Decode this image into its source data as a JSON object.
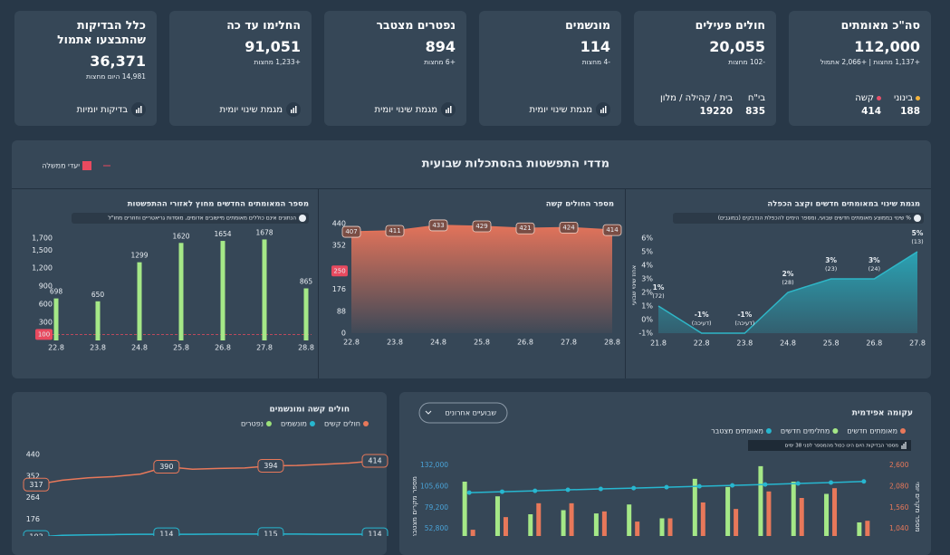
{
  "cards": [
    {
      "title": "סה\"כ מאומתים",
      "value": "112,000",
      "sub": "+1,137 מחצות | +2,066 אתמול",
      "items": [
        {
          "label": "בינוני",
          "value": "188",
          "color": "#f3b33d"
        },
        {
          "label": "קשה",
          "value": "414",
          "color": "#e8506a"
        }
      ]
    },
    {
      "title": "חולים פעילים",
      "value": "20,055",
      "sub": "-102 מחצות",
      "items": [
        {
          "label": "בי\"ח",
          "value": "835"
        },
        {
          "label": "בית / קהילה / מלון",
          "value": "19220"
        }
      ]
    },
    {
      "title": "מונשמים",
      "value": "114",
      "sub": "-4 מחצות",
      "link": "מגמת שינוי יומית"
    },
    {
      "title": "נפטרים מצטבר",
      "value": "894",
      "sub": "+6 מחצות",
      "link": "מגמת שינוי יומית"
    },
    {
      "title": "החלימו עד כה",
      "value": "91,051",
      "sub": "+1,233 מחצות",
      "link": "מגמת שינוי יומית"
    },
    {
      "title": "כלל הבדיקות שהתבצעו אתמול",
      "value": "36,371",
      "sub": "14,981 היום מחצות",
      "link": "בדיקות יומיות"
    }
  ],
  "spread": {
    "title": "מדדי התפשטות בהסתכלות שבועית",
    "legend": "יעדי ממשלה"
  },
  "chart_data": [
    {
      "type": "area",
      "title": "מגמת שינוי במאומתים חדשים וקצב הכפלה",
      "info": "% שינוי בממוצע מאומתים חדשים שבועי, ומספר הימים להכפלת הנדבקים (במוגבים)",
      "y_label": "אחוז שינוי שבועי",
      "categories": [
        "21.8",
        "22.8",
        "23.8",
        "24.8",
        "25.8",
        "26.8",
        "27.8"
      ],
      "values": [
        1,
        -1,
        -1,
        2,
        3,
        3,
        5
      ],
      "value_labels": [
        "1%",
        "-1%",
        "-1%",
        "2%",
        "3%",
        "3%",
        "5%"
      ],
      "doubling_labels": [
        "(72)",
        "(דעיכה)",
        "(דעיכה)",
        "(28)",
        "(23)",
        "(24)",
        "(13)"
      ],
      "color": "#2fb6c7",
      "ylim": [
        -1,
        6
      ],
      "yticks": [
        {
          "value": -1,
          "label": "-1%"
        },
        {
          "value": 0,
          "label": "0%"
        },
        {
          "value": 1,
          "label": "1%"
        },
        {
          "value": 2,
          "label": "2%"
        },
        {
          "value": 3,
          "label": "3%"
        },
        {
          "value": 4,
          "label": "4%"
        },
        {
          "value": 5,
          "label": "5%"
        },
        {
          "value": 6,
          "label": "6%"
        }
      ]
    },
    {
      "type": "area",
      "title": "מספר החולים קשה",
      "categories": [
        "22.8",
        "23.8",
        "24.8",
        "25.8",
        "26.8",
        "27.8",
        "28.8"
      ],
      "values": [
        407,
        411,
        433,
        429,
        421,
        424,
        414
      ],
      "color": "#e2735a",
      "target": 250,
      "ylim": [
        0,
        440
      ],
      "yticks": [
        0,
        88,
        176,
        352,
        440
      ]
    },
    {
      "type": "bar",
      "title": "מספר המאומתים החדשים מחוץ לאזורי ההתפשטות",
      "info": "הנתונים אינם כוללים מאומתים מיישובים אדומים, מוסדות גריאטריים וחוזרים מחו\"ל",
      "categories": [
        "22.8",
        "23.8",
        "24.8",
        "25.8",
        "26.8",
        "27.8",
        "28.8"
      ],
      "values": [
        698,
        650,
        1299,
        1620,
        1654,
        1678,
        865
      ],
      "color": "#a5e887",
      "target": 100,
      "ylim": [
        0,
        1700
      ],
      "yticks": [
        300,
        600,
        900,
        {
          "value": 1200,
          "label": "1,200"
        },
        {
          "value": 1500,
          "label": "1,500"
        },
        {
          "value": 1700,
          "label": "1,700"
        }
      ]
    },
    {
      "type": "line",
      "title": "חולים קשה ומונשמים",
      "series": [
        {
          "name": "חולים קשים",
          "color": "#e8785a",
          "values": [
            317,
            335,
            345,
            350,
            360,
            390,
            380,
            383,
            385,
            394,
            395,
            400,
            405,
            414
          ],
          "value_labels": [
            "317",
            null,
            null,
            null,
            null,
            "390",
            null,
            null,
            null,
            "394",
            null,
            null,
            null,
            "414"
          ]
        },
        {
          "name": "מונשמים",
          "color": "#27b7d0",
          "values": [
            103,
            110,
            112,
            113,
            114,
            114,
            114,
            115,
            115,
            115,
            115,
            114,
            114,
            114
          ],
          "value_labels": [
            "103",
            null,
            null,
            null,
            null,
            "114",
            null,
            null,
            null,
            "115",
            null,
            null,
            null,
            "114"
          ]
        },
        {
          "name": "נפטרים",
          "color": "#9be07a"
        }
      ],
      "ylim": [
        0,
        440
      ],
      "yticks": [
        176,
        264,
        352,
        440
      ]
    },
    {
      "type": "combo",
      "title": "עקומה אפידמית",
      "toggle": "שבועיים אחרונים",
      "info": "מספר הבדיקות היום הינו כפול מהמספר לפני 38 ימים",
      "y_label": "מספר מקרים מצטבר",
      "y2_label": "מספר מקרים יומי",
      "series": [
        {
          "name": "מאומתים חדשים",
          "color": "#e8785a",
          "axis": "y2",
          "values": [
            1020,
            1330,
            1670,
            1670,
            1470,
            1220,
            1300,
            1690,
            1530,
            1960,
            1800,
            2040,
            1240
          ]
        },
        {
          "name": "מחלימים חדשים",
          "color": "#a5e887",
          "axis": "y2",
          "values": [
            2200,
            1840,
            1400,
            1500,
            1420,
            1640,
            1300,
            2270,
            2070,
            2580,
            2200,
            1900,
            1200
          ]
        },
        {
          "name": "מאומתים מצטבר",
          "color": "#27b7d0",
          "axis": "y",
          "values": [
            98000,
            99200,
            100300,
            101500,
            102600,
            103700,
            104800,
            105900,
            107000,
            108200,
            109400,
            110600,
            112000
          ]
        }
      ],
      "ylim": [
        0,
        132000
      ],
      "yticks": [
        {
          "value": 52800,
          "label": "52,800"
        },
        {
          "value": 79200,
          "label": "79,200"
        },
        {
          "value": 105600,
          "label": "105,600"
        },
        {
          "value": 132000,
          "label": "132,000"
        }
      ],
      "y2lim": [
        0,
        2600
      ],
      "y2ticks": [
        {
          "value": 1040,
          "label": "1,040"
        },
        {
          "value": 1560,
          "label": "1,560"
        },
        {
          "value": 2080,
          "label": "2,080"
        },
        {
          "value": 2600,
          "label": "2,600"
        }
      ]
    }
  ]
}
